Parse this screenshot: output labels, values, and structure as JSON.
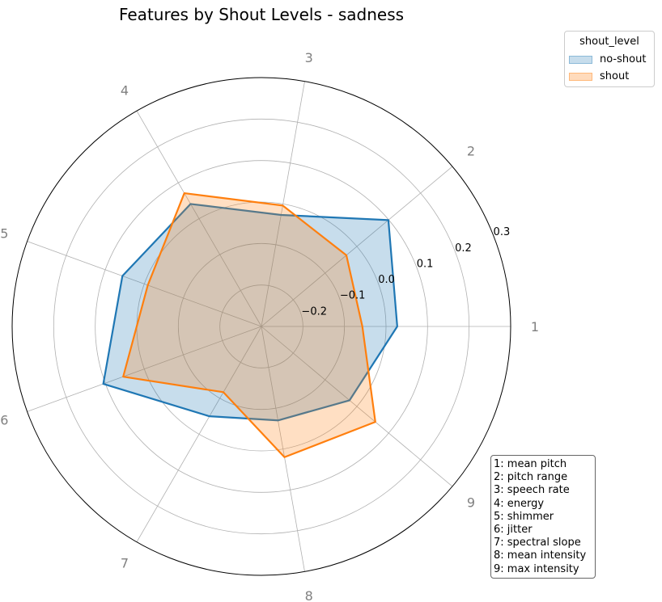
{
  "chart_data": {
    "type": "radar",
    "title": "Features by Shout Levels - sadness",
    "categories": [
      "1",
      "2",
      "3",
      "4",
      "5",
      "6",
      "7",
      "8",
      "9"
    ],
    "category_key": [
      "1: mean pitch",
      "2: pitch range",
      "3: speech rate",
      "4: energy",
      "5: shimmer",
      "6: jitter",
      "7: spectral slope",
      "8: mean intensity",
      "9: max intensity"
    ],
    "radial_ticks": [
      -0.2,
      -0.1,
      0.0,
      0.1,
      0.2,
      0.3
    ],
    "radial_tick_labels": [
      "−0.2",
      "−0.1",
      "0.0",
      "0.1",
      "0.2",
      "0.3"
    ],
    "rlim": [
      -0.3,
      0.3
    ],
    "grid": true,
    "legend": {
      "title": "shout_level",
      "placement": "upper-right outside"
    },
    "series": [
      {
        "name": "no-shout",
        "color": "#1f77b4",
        "values": [
          0.027,
          0.099,
          -0.027,
          0.041,
          0.056,
          0.105,
          -0.05,
          -0.07,
          -0.023
        ]
      },
      {
        "name": "shout",
        "color": "#ff7f0e",
        "values": [
          -0.057,
          -0.033,
          -0.004,
          0.071,
          -0.009,
          0.054,
          -0.117,
          0.02,
          0.058
        ]
      }
    ]
  }
}
